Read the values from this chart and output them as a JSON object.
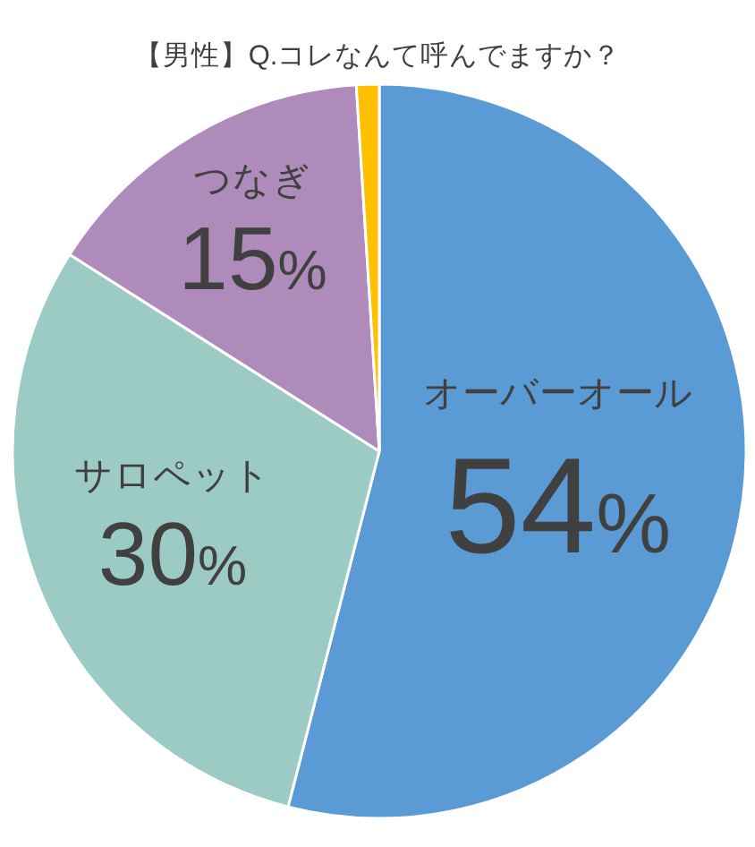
{
  "chart_data": {
    "type": "pie",
    "title": "【男性】Q.コレなんて呼んでますか？",
    "categories": [
      "オーバーオール",
      "サロペット",
      "つなぎ",
      null
    ],
    "values": [
      54,
      30,
      15,
      1
    ],
    "colors": [
      "#5b9bd5",
      "#9ccbc5",
      "#ae8bbb",
      "#ffc000"
    ],
    "value_labels": [
      "54%",
      "30%",
      "15%",
      null
    ]
  }
}
